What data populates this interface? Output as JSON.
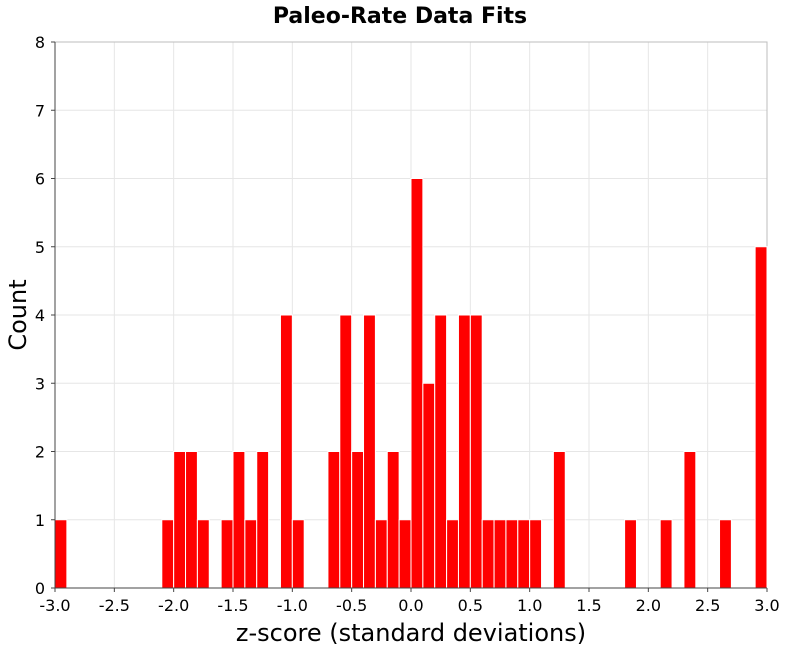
{
  "chart_data": {
    "type": "bar",
    "title": "Paleo-Rate Data Fits",
    "xlabel": "z-score (standard deviations)",
    "ylabel": "Count",
    "xlim": [
      -3.0,
      3.0
    ],
    "ylim": [
      0,
      8
    ],
    "bin_width": 0.1,
    "xticks": [
      "-3.0",
      "-2.5",
      "-2.0",
      "-1.5",
      "-1.0",
      "-0.5",
      "0.0",
      "0.5",
      "1.0",
      "1.5",
      "2.0",
      "2.5",
      "3.0"
    ],
    "yticks": [
      "0",
      "1",
      "2",
      "3",
      "4",
      "5",
      "6",
      "7",
      "8"
    ],
    "grid": true,
    "bar_color": "#ff0000",
    "x": [
      -3.0,
      -2.1,
      -2.0,
      -1.9,
      -1.8,
      -1.6,
      -1.5,
      -1.4,
      -1.3,
      -1.1,
      -1.0,
      -0.7,
      -0.6,
      -0.5,
      -0.4,
      -0.3,
      -0.2,
      -0.1,
      0.0,
      0.1,
      0.2,
      0.3,
      0.4,
      0.5,
      0.6,
      0.7,
      0.8,
      0.9,
      1.0,
      1.2,
      1.8,
      2.1,
      2.3,
      2.6,
      2.9
    ],
    "values": [
      1,
      1,
      2,
      2,
      1,
      1,
      2,
      1,
      2,
      4,
      1,
      2,
      4,
      2,
      4,
      1,
      2,
      1,
      6,
      3,
      4,
      1,
      4,
      4,
      1,
      1,
      1,
      1,
      1,
      2,
      1,
      1,
      2,
      1,
      5
    ]
  }
}
